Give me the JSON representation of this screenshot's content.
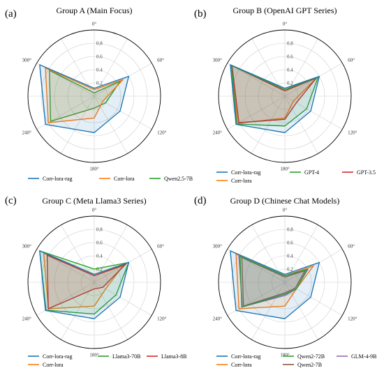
{
  "chart_data": [
    {
      "type": "radar",
      "letter": "(a)",
      "title": "Group A (Main Focus)",
      "angle_labels": [
        "0°",
        "60°",
        "120°",
        "180°",
        "240°",
        "300°"
      ],
      "radial_ticks": [
        "0.2",
        "0.4",
        "0.6",
        "0.8"
      ],
      "rlim": [
        0,
        1
      ],
      "series": [
        {
          "name": "Corr-lora-rag",
          "color": "#1f77b4",
          "values": [
            0.12,
            0.6,
            0.45,
            0.55,
            0.85,
            0.95
          ]
        },
        {
          "name": "Corr-lora",
          "color": "#ff7f0e",
          "values": [
            0.1,
            0.5,
            0.15,
            0.33,
            0.8,
            0.85
          ]
        },
        {
          "name": "Qwen2.5-7B",
          "color": "#2ca02c",
          "values": [
            0.05,
            0.45,
            0.2,
            0.18,
            0.76,
            0.78
          ]
        }
      ]
    },
    {
      "type": "radar",
      "letter": "(b)",
      "title": "Group B (OpenAI GPT Series)",
      "angle_labels": [
        "0°",
        "60°",
        "120°",
        "180°",
        "240°",
        "300°"
      ],
      "radial_ticks": [
        "0.2",
        "0.4",
        "0.6",
        "0.8"
      ],
      "rlim": [
        0,
        1
      ],
      "series": [
        {
          "name": "Corr-lora-rag",
          "color": "#1f77b4",
          "values": [
            0.12,
            0.6,
            0.45,
            0.55,
            0.85,
            0.95
          ]
        },
        {
          "name": "GPT-4",
          "color": "#2ca02c",
          "values": [
            0.1,
            0.58,
            0.38,
            0.45,
            0.84,
            0.93
          ]
        },
        {
          "name": "GPT-3.5",
          "color": "#d62728",
          "values": [
            0.08,
            0.55,
            0.2,
            0.35,
            0.8,
            0.92
          ]
        },
        {
          "name": "Corr-lora",
          "color": "#ff7f0e",
          "values": [
            0.1,
            0.55,
            0.15,
            0.33,
            0.82,
            0.93
          ]
        }
      ]
    },
    {
      "type": "radar",
      "letter": "(c)",
      "title": "Group C (Meta Llama3 Series)",
      "angle_labels": [
        "0°",
        "60°",
        "120°",
        "180°",
        "240°",
        "300°"
      ],
      "radial_ticks": [
        "0.2",
        "0.4",
        "0.6",
        "0.8"
      ],
      "rlim": [
        0,
        1
      ],
      "series": [
        {
          "name": "Corr-lora-rag",
          "color": "#1f77b4",
          "values": [
            0.12,
            0.6,
            0.45,
            0.55,
            0.85,
            0.95
          ]
        },
        {
          "name": "Llama3-70B",
          "color": "#2ca02c",
          "values": [
            0.2,
            0.6,
            0.38,
            0.48,
            0.84,
            0.95
          ]
        },
        {
          "name": "Llama3-8B",
          "color": "#d62728",
          "values": [
            0.1,
            0.55,
            0.15,
            0.1,
            0.8,
            0.82
          ]
        },
        {
          "name": "Corr-lora",
          "color": "#ff7f0e",
          "values": [
            0.1,
            0.5,
            0.2,
            0.36,
            0.8,
            0.88
          ]
        }
      ]
    },
    {
      "type": "radar",
      "letter": "(d)",
      "title": "Group D (Chinese Chat Models)",
      "angle_labels": [
        "0°",
        "60°",
        "120°",
        "180°",
        "240°",
        "300°"
      ],
      "radial_ticks": [
        "0.2",
        "0.4",
        "0.6",
        "0.8"
      ],
      "rlim": [
        0,
        1
      ],
      "series": [
        {
          "name": "Corr-lora-rag",
          "color": "#1f77b4",
          "values": [
            0.12,
            0.6,
            0.45,
            0.55,
            0.85,
            0.95
          ]
        },
        {
          "name": "Qwen2-72B",
          "color": "#2ca02c",
          "values": [
            0.1,
            0.4,
            0.2,
            0.18,
            0.75,
            0.78
          ]
        },
        {
          "name": "GLM-4-9B",
          "color": "#9467bd",
          "values": [
            0.1,
            0.38,
            0.2,
            0.2,
            0.74,
            0.8
          ]
        },
        {
          "name": "Corr-lora",
          "color": "#ff7f0e",
          "values": [
            0.1,
            0.5,
            0.2,
            0.36,
            0.8,
            0.85
          ]
        },
        {
          "name": "Qwen2-7B",
          "color": "#8c564b",
          "values": [
            0.08,
            0.35,
            0.18,
            0.16,
            0.72,
            0.75
          ]
        }
      ]
    }
  ]
}
